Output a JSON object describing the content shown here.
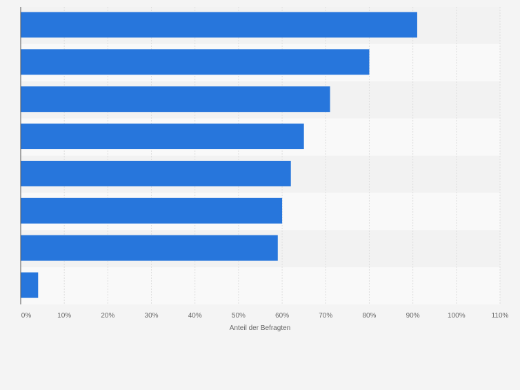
{
  "chart_data": {
    "type": "bar",
    "orientation": "horizontal",
    "categories": [
      "",
      "",
      "",
      "",
      "",
      "",
      "",
      ""
    ],
    "values": [
      91,
      80,
      71,
      65,
      62,
      60,
      59,
      4
    ],
    "xlabel": "Anteil der Befragten",
    "ylabel": "",
    "xlim": [
      0,
      110
    ],
    "xticks": [
      "0%",
      "10%",
      "20%",
      "30%",
      "40%",
      "50%",
      "60%",
      "70%",
      "80%",
      "90%",
      "100%",
      "110%"
    ],
    "grid": true,
    "legend": "none",
    "colors": {
      "bar": "#2776dc",
      "band_light": "#f9f9f9",
      "band_dark": "#f2f2f2",
      "grid": "#dddddd",
      "axis": "#555555",
      "text": "#666666"
    }
  }
}
